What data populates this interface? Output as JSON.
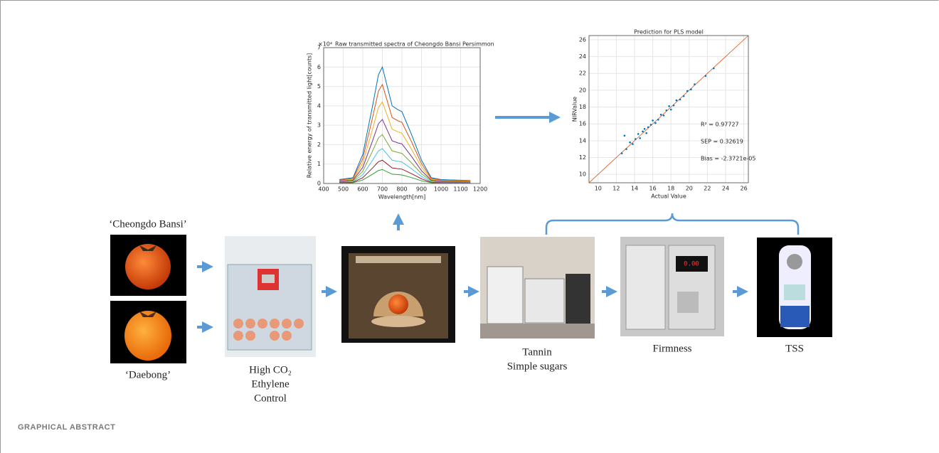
{
  "chart_data": [
    {
      "type": "line",
      "title": "Raw transmitted spectra of Cheongdo Bansi Persimmon",
      "exponent_label": "×10⁴",
      "x_label": "Wavelength[nm]",
      "y_label": "Relative energy of transmitted light[counts]",
      "xlim": [
        400,
        1200
      ],
      "ylim": [
        0,
        7
      ],
      "xticks": [
        400,
        500,
        600,
        700,
        800,
        900,
        1000,
        1100,
        1200
      ],
      "yticks": [
        0,
        1,
        2,
        3,
        4,
        5,
        6,
        7
      ],
      "grid": true,
      "x": [
        480,
        550,
        600,
        650,
        680,
        700,
        750,
        780,
        800,
        850,
        900,
        950,
        1000,
        1150
      ],
      "series": [
        {
          "color": "#0072bd",
          "values": [
            0.2,
            0.3,
            1.5,
            4.0,
            5.6,
            6.0,
            4.0,
            3.8,
            3.7,
            2.5,
            1.2,
            0.3,
            0.2,
            0.15
          ]
        },
        {
          "color": "#d95319",
          "values": [
            0.17,
            0.26,
            1.28,
            3.4,
            4.76,
            5.1,
            3.4,
            3.23,
            3.15,
            2.13,
            1.02,
            0.26,
            0.17,
            0.13
          ]
        },
        {
          "color": "#edb120",
          "values": [
            0.14,
            0.21,
            1.05,
            2.8,
            3.92,
            4.2,
            2.8,
            2.66,
            2.59,
            1.75,
            0.84,
            0.21,
            0.14,
            0.11
          ]
        },
        {
          "color": "#7e2f8e",
          "values": [
            0.11,
            0.17,
            0.83,
            2.2,
            3.08,
            3.3,
            2.2,
            2.09,
            2.04,
            1.38,
            0.66,
            0.17,
            0.11,
            0.08
          ]
        },
        {
          "color": "#77ac30",
          "values": [
            0.08,
            0.13,
            0.63,
            1.68,
            2.35,
            2.52,
            1.68,
            1.6,
            1.55,
            1.05,
            0.5,
            0.13,
            0.08,
            0.06
          ]
        },
        {
          "color": "#4dbeee",
          "values": [
            0.06,
            0.09,
            0.45,
            1.2,
            1.68,
            1.8,
            1.2,
            1.14,
            1.11,
            0.75,
            0.36,
            0.09,
            0.06,
            0.05
          ]
        },
        {
          "color": "#a2142f",
          "values": [
            0.04,
            0.06,
            0.3,
            0.8,
            1.12,
            1.2,
            0.8,
            0.76,
            0.74,
            0.5,
            0.24,
            0.06,
            0.04,
            0.03
          ]
        },
        {
          "color": "#2ca02c",
          "values": [
            0.02,
            0.04,
            0.18,
            0.48,
            0.67,
            0.72,
            0.48,
            0.46,
            0.44,
            0.3,
            0.14,
            0.04,
            0.02,
            0.02
          ]
        }
      ]
    },
    {
      "type": "scatter",
      "title": "Prediction for PLS model",
      "x_label": "Actual Value",
      "y_label": "NIRValue",
      "xlim": [
        9,
        26.5
      ],
      "ylim": [
        9,
        26.5
      ],
      "xticks": [
        10,
        12,
        14,
        16,
        18,
        20,
        22,
        24,
        26
      ],
      "yticks": [
        10,
        12,
        14,
        16,
        18,
        20,
        22,
        24,
        26
      ],
      "grid": true,
      "color": "#0072bd",
      "line_color": "#d95319",
      "x": [
        12.6,
        12.9,
        13.1,
        13.5,
        13.8,
        14.1,
        14.4,
        14.6,
        14.9,
        15.1,
        15.3,
        15.5,
        15.8,
        16.0,
        16.3,
        16.6,
        16.9,
        17.2,
        17.5,
        17.8,
        18.0,
        18.3,
        18.6,
        19.0,
        19.4,
        19.8,
        20.2,
        20.6,
        21.8,
        22.7
      ],
      "y": [
        12.5,
        14.6,
        13.0,
        13.8,
        13.6,
        14.2,
        14.8,
        14.3,
        15.1,
        15.4,
        14.9,
        15.6,
        15.9,
        16.4,
        16.1,
        16.5,
        17.1,
        17.0,
        17.6,
        18.1,
        17.7,
        18.2,
        18.8,
        18.9,
        19.3,
        19.9,
        20.1,
        20.7,
        21.7,
        22.6
      ],
      "annotations": [
        "R² = 0.97727",
        "SEP = 0.32619",
        "Bias = -2.3721e-05"
      ]
    }
  ],
  "labels": {
    "cultivar_1": "‘Cheongdo Bansi’",
    "cultivar_2": "‘Daebong’",
    "treatment": [
      "High CO₂",
      "Ethylene",
      "Control"
    ],
    "chemical": [
      "Tannin",
      "Simple sugars"
    ],
    "firmness": "Firmness",
    "tss": "TSS"
  },
  "footer": "GRAPHICAL ABSTRACT"
}
